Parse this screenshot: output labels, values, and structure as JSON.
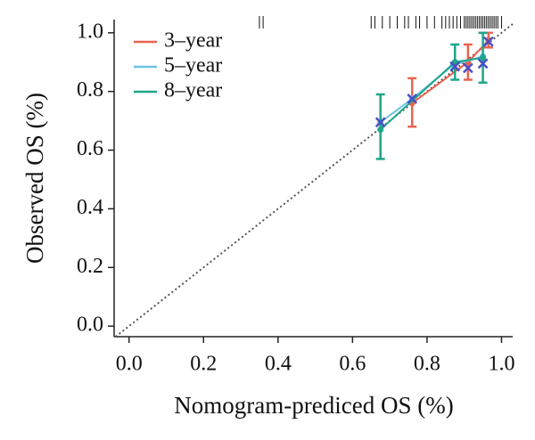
{
  "chart_data": {
    "type": "calibration",
    "xlabel": "Nomogram-prediced OS (%)",
    "ylabel": "Observed OS (%)",
    "xlim": [
      -0.04,
      1.03
    ],
    "ylim": [
      -0.036,
      1.045
    ],
    "xticks": [
      {
        "value": 0,
        "label": "0.0"
      },
      0.2,
      0.4,
      0.6,
      0.8,
      {
        "value": 1,
        "label": "1.0"
      }
    ],
    "yticks": [
      {
        "value": 0,
        "label": "0.0"
      },
      0.2,
      0.4,
      0.6,
      0.8,
      {
        "value": 1,
        "label": "1.0"
      }
    ],
    "legend": "top-left",
    "series": [
      {
        "name": "3–year",
        "color": "#e8634f",
        "x": [
          0.76,
          0.91,
          0.965
        ],
        "values": [
          0.76,
          0.9,
          0.975
        ],
        "lower": [
          0.68,
          0.84,
          0.95
        ],
        "upper": [
          0.845,
          0.96,
          1.0
        ]
      },
      {
        "name": "5–year",
        "color": "#6cc3e6",
        "x": [
          0.675,
          0.76,
          0.87,
          0.95
        ],
        "values": [
          0.695,
          0.775,
          0.89,
          0.92
        ]
      },
      {
        "name": "8–year",
        "color": "#1ea58a",
        "x": [
          0.675,
          0.875,
          0.95
        ],
        "values": [
          0.67,
          0.9,
          0.915
        ],
        "lower": [
          0.57,
          0.84,
          0.83
        ],
        "upper": [
          0.79,
          0.96,
          1.0
        ]
      }
    ],
    "markers": {
      "color": "#4a4fc4",
      "x": [
        0.675,
        0.76,
        0.875,
        0.91,
        0.95,
        0.965
      ],
      "values": [
        0.695,
        0.775,
        0.885,
        0.88,
        0.895,
        0.97
      ]
    },
    "rug": [
      0.35,
      0.36,
      0.65,
      0.66,
      0.68,
      0.7,
      0.72,
      0.74,
      0.75,
      0.77,
      0.78,
      0.8,
      0.82,
      0.84,
      0.85,
      0.86,
      0.87,
      0.88,
      0.89,
      0.9,
      0.905,
      0.91,
      0.915,
      0.92,
      0.925,
      0.93,
      0.935,
      0.94,
      0.945,
      0.95,
      0.955,
      0.96,
      0.965,
      0.97,
      0.975,
      0.98,
      0.985,
      0.99,
      1.0
    ]
  }
}
